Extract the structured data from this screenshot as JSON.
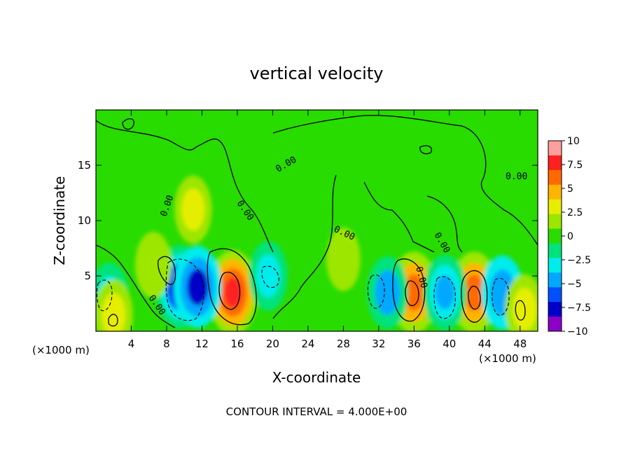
{
  "chart_data": {
    "type": "heatmap",
    "title": "vertical velocity",
    "xlabel": "X-coordinate",
    "ylabel": "Z-coordinate",
    "x_unit_left": "(×1000 m)",
    "x_unit_right": "(×1000 m)",
    "xlim": [
      0,
      50
    ],
    "ylim": [
      0,
      20
    ],
    "x_ticks": [
      4,
      8,
      12,
      16,
      20,
      24,
      28,
      32,
      36,
      40,
      44,
      48
    ],
    "y_ticks": [
      5,
      10,
      15
    ],
    "colorbar": {
      "ticks": [
        "10",
        "7.5",
        "5",
        "2.5",
        "0",
        "−2.5",
        "−5",
        "−7.5",
        "−10"
      ],
      "range": [
        -10,
        10
      ],
      "colors": [
        "#ff9e9e",
        "#ff2020",
        "#ff6a00",
        "#ffb400",
        "#e6ee00",
        "#9ce600",
        "#28dc00",
        "#00e27c",
        "#00ecec",
        "#00a8ff",
        "#0050ff",
        "#0000c8",
        "#8c00c8"
      ]
    },
    "contour_label": "0.00",
    "contour_interval": "CONTOUR INTERVAL = 4.000E+00",
    "features": [
      {
        "x": 15.5,
        "z": 3.5,
        "w": 8.5
      },
      {
        "x": 36.0,
        "z": 3.5,
        "w": 7.5
      },
      {
        "x": 42.8,
        "z": 3.5,
        "w": 7.5
      },
      {
        "x": 11.0,
        "z": 11.0,
        "w": 3.0
      },
      {
        "x": 9.5,
        "z": 4.0,
        "w": -8.0
      },
      {
        "x": 11.5,
        "z": 4.0,
        "w": -7.5
      },
      {
        "x": 1.5,
        "z": 3.0,
        "w": -4.0
      },
      {
        "x": 19.5,
        "z": 5.0,
        "w": -3.5
      },
      {
        "x": 33.0,
        "z": 3.5,
        "w": -4.5
      },
      {
        "x": 39.5,
        "z": 3.5,
        "w": -5.5
      },
      {
        "x": 46.0,
        "z": 3.5,
        "w": -5.0
      },
      {
        "x": 6.5,
        "z": 6.0,
        "w": 2.5
      },
      {
        "x": 2.0,
        "z": 1.5,
        "w": 3.5
      },
      {
        "x": 48.5,
        "z": 2.0,
        "w": 3.5
      },
      {
        "x": 28.0,
        "z": 6.5,
        "w": 1.5
      }
    ]
  }
}
